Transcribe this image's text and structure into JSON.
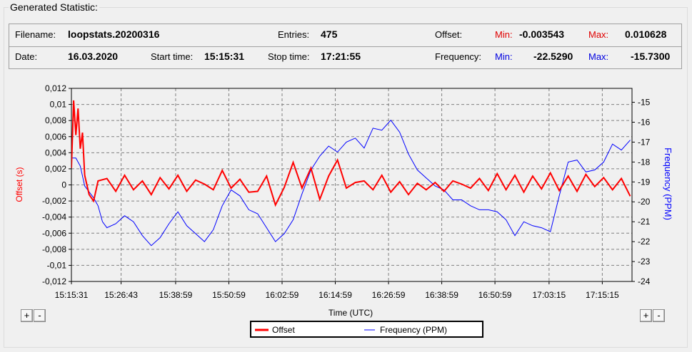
{
  "group_title": "Generated Statistic:",
  "info": {
    "filename_label": "Filename:",
    "filename": "loopstats.20200316",
    "entries_label": "Entries:",
    "entries": "475",
    "offset_label": "Offset:",
    "min_label": "Min:",
    "offset_min": "-0.003543",
    "max_label": "Max:",
    "offset_max": "0.010628",
    "date_label": "Date:",
    "date": "16.03.2020",
    "start_label": "Start time:",
    "start_time": "15:15:31",
    "stop_label": "Stop time:",
    "stop_time": "17:21:55",
    "frequency_label": "Frequency:",
    "freq_min": "-22.5290",
    "freq_max": "-15.7300"
  },
  "buttons": {
    "plus": "+",
    "minus": "-"
  },
  "colors": {
    "offset": "#ff0000",
    "frequency": "#0000ff",
    "min_offset": "#e00000",
    "min_freq": "#0000e0"
  },
  "chart_data": {
    "type": "line",
    "xlabel": "Time (UTC)",
    "y_left_label": "Offset (s)",
    "y_right_label": "Frequency (PPM)",
    "x_ticks": [
      "15:15:31",
      "15:26:43",
      "15:38:59",
      "15:50:59",
      "16:02:59",
      "16:14:59",
      "16:26:59",
      "16:38:59",
      "16:50:59",
      "17:03:15",
      "17:15:15"
    ],
    "x_tick_minutes": [
      0,
      11.2,
      23.5,
      35.5,
      47.5,
      59.5,
      71.5,
      83.5,
      95.5,
      107.7,
      119.7
    ],
    "x_range_minutes": [
      0,
      126.4
    ],
    "y_left_ticks": [
      "0,012",
      "0,01",
      "0,008",
      "0,006",
      "0,004",
      "0,002",
      "0",
      "-0,002",
      "-0,004",
      "-0,006",
      "-0,008",
      "-0,01",
      "-0,012"
    ],
    "y_left_range": [
      -0.012,
      0.012
    ],
    "y_right_ticks": [
      "-15",
      "-16",
      "-17",
      "-18",
      "-19",
      "-20",
      "-21",
      "-22",
      "-23",
      "-24"
    ],
    "y_right_range": [
      -24,
      -14.3
    ],
    "legend_position": "bottom-center",
    "grid": true,
    "series": [
      {
        "name": "Offset",
        "axis": "left",
        "x": [
          0,
          0.5,
          1,
          1.5,
          2,
          2.5,
          3,
          3.5,
          4,
          5,
          6,
          8,
          10,
          12,
          14,
          16,
          18,
          20,
          22,
          24,
          26,
          28,
          30,
          32,
          34,
          36,
          38,
          40,
          42,
          44,
          46,
          48,
          50,
          52,
          54,
          56,
          58,
          60,
          62,
          64,
          66,
          68,
          70,
          72,
          74,
          76,
          78,
          80,
          82,
          84,
          86,
          88,
          90,
          92,
          94,
          96,
          98,
          100,
          102,
          104,
          106,
          108,
          110,
          112,
          114,
          116,
          118,
          120,
          122,
          124,
          126
        ],
        "values": [
          0.0021,
          0.0105,
          0.0062,
          0.0095,
          0.0045,
          0.0065,
          0.0012,
          0.0,
          -0.0012,
          -0.002,
          0.0005,
          0.0008,
          -0.0008,
          0.0012,
          -0.0006,
          0.0005,
          -0.0012,
          0.0009,
          -0.0005,
          0.0012,
          -0.0008,
          0.0006,
          0.0001,
          -0.0006,
          0.0018,
          -0.0004,
          0.0007,
          -0.0009,
          -0.0008,
          0.0011,
          -0.0025,
          -0.0003,
          0.0028,
          -0.0004,
          0.0021,
          -0.0018,
          0.0011,
          0.0031,
          -0.0004,
          0.0003,
          0.0005,
          -0.0006,
          0.0012,
          -0.0009,
          0.0004,
          -0.0012,
          0.0002,
          -0.0006,
          0.0003,
          -0.0008,
          0.0005,
          0.0001,
          -0.0004,
          0.0008,
          -0.0007,
          0.0014,
          -0.0006,
          0.0012,
          -0.0009,
          0.0011,
          -0.0005,
          0.0015,
          -0.0007,
          0.0011,
          -0.0008,
          0.0013,
          -0.0002,
          0.0009,
          -0.0006,
          0.0008,
          -0.0014
        ]
      },
      {
        "name": "Frequency (PPM)",
        "axis": "right",
        "x": [
          0,
          1,
          2,
          3,
          4,
          5,
          6,
          7,
          8,
          10,
          12,
          14,
          16,
          18,
          20,
          22,
          24,
          26,
          28,
          30,
          32,
          34,
          36,
          38,
          40,
          42,
          44,
          46,
          48,
          50,
          52,
          54,
          56,
          58,
          60,
          62,
          64,
          66,
          68,
          70,
          72,
          74,
          76,
          78,
          80,
          82,
          84,
          86,
          88,
          90,
          92,
          94,
          96,
          98,
          100,
          102,
          104,
          106,
          108,
          110,
          112,
          114,
          116,
          118,
          120,
          122,
          124,
          126
        ],
        "values": [
          -17.8,
          -17.8,
          -18.2,
          -19.2,
          -19.5,
          -19.8,
          -20.2,
          -21.0,
          -21.3,
          -21.1,
          -20.7,
          -21.0,
          -21.7,
          -22.2,
          -21.8,
          -21.1,
          -20.5,
          -21.2,
          -21.6,
          -22.0,
          -21.4,
          -20.2,
          -19.4,
          -19.7,
          -20.4,
          -20.6,
          -21.3,
          -22.0,
          -21.6,
          -20.9,
          -19.6,
          -18.4,
          -17.7,
          -17.2,
          -17.5,
          -17.0,
          -16.8,
          -17.3,
          -16.3,
          -16.4,
          -15.9,
          -16.5,
          -17.6,
          -18.4,
          -18.8,
          -19.2,
          -19.4,
          -19.9,
          -19.9,
          -20.2,
          -20.4,
          -20.4,
          -20.5,
          -20.9,
          -21.7,
          -21.0,
          -21.2,
          -21.3,
          -21.5,
          -19.7,
          -18.0,
          -17.9,
          -18.5,
          -18.4,
          -18.0,
          -17.1,
          -17.4,
          -16.9
        ]
      }
    ]
  }
}
